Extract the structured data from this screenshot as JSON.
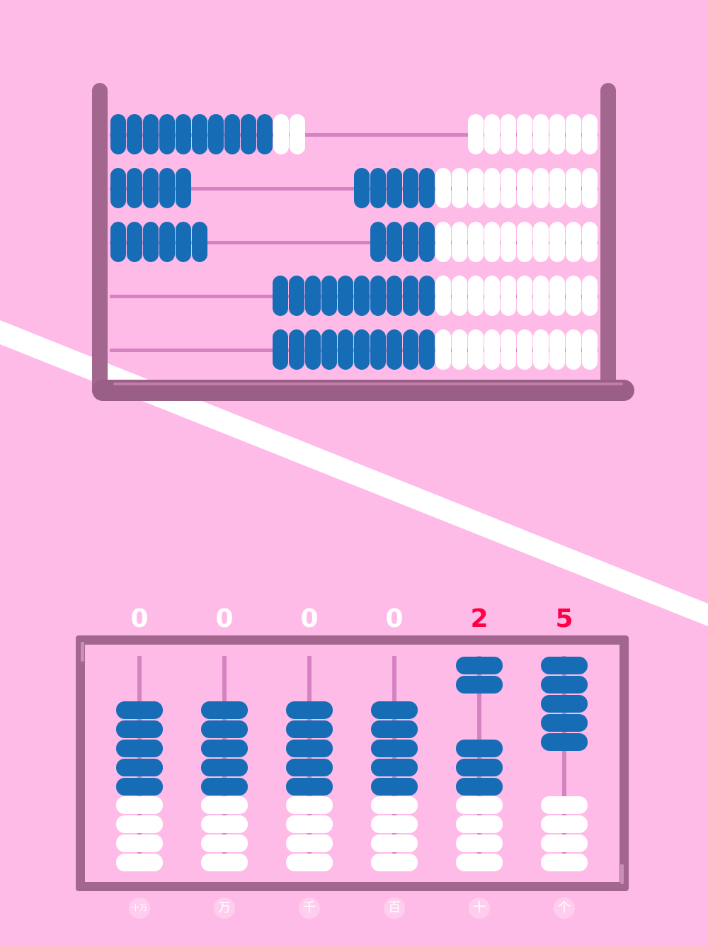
{
  "colors": {
    "background": "#ffbbe8",
    "bead_active": "#166db6",
    "bead_inactive": "#ffffff",
    "rod": "#d483c0",
    "digit_default": "#ffffff",
    "digit_highlight": "#ff0044"
  },
  "rack_abacus": {
    "rows": [
      {
        "left_blue": 10,
        "left_white": 2,
        "right_blue": 0,
        "right_white": 8
      },
      {
        "left_blue": 5,
        "left_white": 0,
        "right_blue": 5,
        "right_white": 10
      },
      {
        "left_blue": 6,
        "left_white": 0,
        "right_blue": 4,
        "right_white": 10
      },
      {
        "left_blue": 0,
        "left_white": 0,
        "right_blue": 10,
        "right_white": 10
      },
      {
        "left_blue": 0,
        "left_white": 0,
        "right_blue": 10,
        "right_white": 10
      }
    ]
  },
  "soroban": {
    "columns": [
      {
        "digit": "0",
        "label": "十万",
        "active": 5,
        "at_top": false,
        "highlight": false
      },
      {
        "digit": "0",
        "label": "万",
        "active": 5,
        "at_top": false,
        "highlight": false
      },
      {
        "digit": "0",
        "label": "千",
        "active": 5,
        "at_top": false,
        "highlight": false
      },
      {
        "digit": "0",
        "label": "百",
        "active": 5,
        "at_top": false,
        "highlight": false
      },
      {
        "digit": "2",
        "label": "十",
        "active": 5,
        "at_top": false,
        "highlight": true,
        "raised": 2
      },
      {
        "digit": "5",
        "label": "个",
        "active": 5,
        "at_top": true,
        "highlight": true,
        "raised": 5
      }
    ],
    "white_beads_per_rod": 4
  }
}
